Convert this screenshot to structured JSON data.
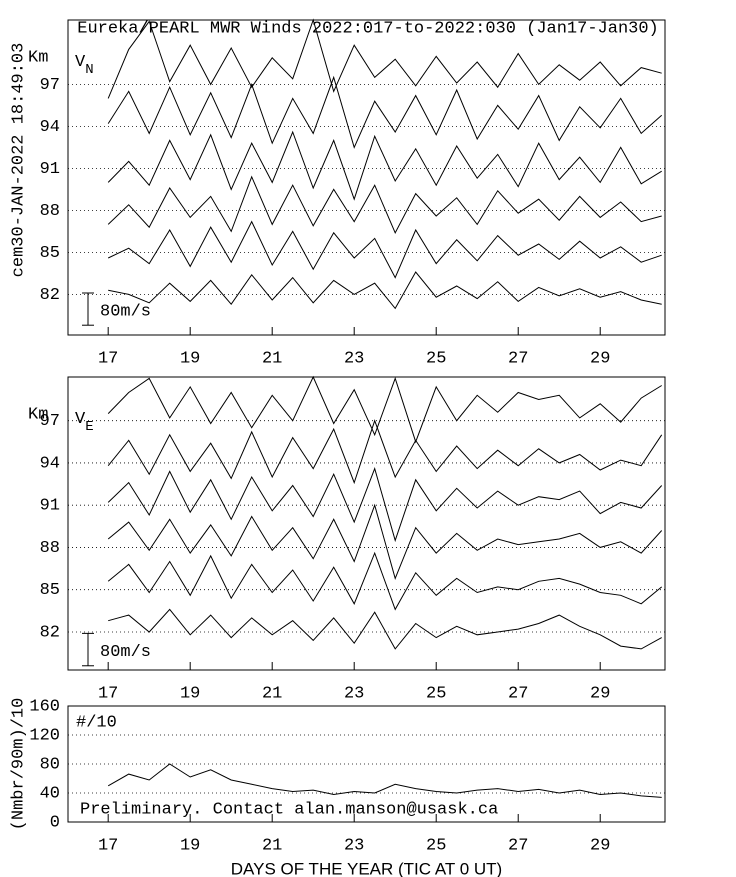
{
  "header": {
    "title": "Eureka/PEARL MWR Winds 2022:017-to-2022:030 (Jan17-Jan30)",
    "timestamp": "cem30-JAN-2022 18:49:03"
  },
  "chart_data": [
    {
      "type": "line",
      "unit_label": "Km",
      "panel_label": "V",
      "panel_sub": "N",
      "scale_label": "80m/s",
      "scale_bar": [
        79.8,
        82.1
      ],
      "xlim": [
        16.02,
        30.58
      ],
      "xticks": [
        17,
        19,
        21,
        23,
        25,
        27,
        29
      ],
      "ylim": [
        79.1,
        101.6
      ],
      "yticks": [
        82,
        85,
        88,
        91,
        94,
        97
      ],
      "grid": true,
      "x": [
        17.0,
        17.5,
        18.0,
        18.5,
        19.0,
        19.5,
        20.0,
        20.5,
        21.0,
        21.5,
        22.0,
        22.5,
        23.0,
        23.5,
        24.0,
        24.5,
        25.0,
        25.5,
        26.0,
        26.5,
        27.0,
        27.5,
        28.0,
        28.5,
        29.0,
        29.5,
        30.0,
        30.5
      ],
      "series": [
        {
          "color": "#000000",
          "values": [
            96.0,
            99.5,
            101.5,
            97.2,
            99.8,
            97.0,
            99.6,
            96.8,
            98.9,
            97.4,
            101.6,
            96.5,
            99.8,
            97.5,
            98.8,
            96.9,
            99.0,
            97.1,
            98.6,
            96.8,
            99.2,
            97.0,
            98.4,
            97.3,
            98.6,
            96.9,
            98.2,
            97.8
          ]
        },
        {
          "color": "#000000",
          "values": [
            94.2,
            96.5,
            93.5,
            96.8,
            93.4,
            96.4,
            93.2,
            97.0,
            92.8,
            96.0,
            93.5,
            97.5,
            92.5,
            95.8,
            93.6,
            96.2,
            93.4,
            96.6,
            93.1,
            95.5,
            93.8,
            96.2,
            93.0,
            95.4,
            93.9,
            96.0,
            93.5,
            94.8
          ]
        },
        {
          "color": "#000000",
          "values": [
            90.0,
            91.5,
            89.8,
            93.0,
            90.2,
            93.4,
            89.5,
            92.8,
            90.0,
            93.6,
            89.6,
            93.0,
            88.8,
            93.3,
            90.1,
            92.4,
            89.8,
            92.6,
            90.3,
            92.0,
            89.7,
            92.8,
            90.2,
            91.8,
            90.0,
            92.5,
            89.9,
            90.8
          ]
        },
        {
          "color": "#000000",
          "values": [
            87.0,
            88.4,
            86.8,
            89.6,
            87.5,
            89.0,
            86.5,
            90.4,
            87.0,
            89.8,
            86.9,
            89.5,
            87.2,
            89.8,
            86.4,
            89.2,
            87.6,
            88.9,
            87.0,
            89.4,
            87.8,
            88.8,
            87.3,
            89.0,
            87.5,
            88.6,
            87.2,
            87.6
          ]
        },
        {
          "color": "#000000",
          "values": [
            84.6,
            85.3,
            84.2,
            86.6,
            84.0,
            86.8,
            84.3,
            87.2,
            84.1,
            86.5,
            83.8,
            86.4,
            84.6,
            86.0,
            83.2,
            86.6,
            84.2,
            85.9,
            84.4,
            86.2,
            84.8,
            85.6,
            84.5,
            85.8,
            84.6,
            85.4,
            84.3,
            84.8
          ]
        },
        {
          "color": "#000000",
          "values": [
            82.3,
            82.0,
            81.4,
            82.8,
            81.5,
            83.0,
            81.3,
            83.4,
            81.6,
            83.2,
            81.4,
            83.0,
            82.0,
            82.8,
            81.0,
            83.6,
            81.8,
            82.6,
            81.7,
            82.9,
            81.5,
            82.5,
            81.9,
            82.4,
            81.8,
            82.2,
            81.6,
            81.3
          ]
        }
      ]
    },
    {
      "type": "line",
      "unit_label": "Km",
      "panel_label": "V",
      "panel_sub": "E",
      "scale_label": "80m/s",
      "scale_bar": [
        79.6,
        81.9
      ],
      "xlim": [
        16.02,
        30.58
      ],
      "xticks": [
        17,
        19,
        21,
        23,
        25,
        27,
        29
      ],
      "ylim": [
        79.3,
        100.1
      ],
      "yticks": [
        82,
        85,
        88,
        91,
        94,
        97
      ],
      "grid": true,
      "x": [
        17.0,
        17.5,
        18.0,
        18.5,
        19.0,
        19.5,
        20.0,
        20.5,
        21.0,
        21.5,
        22.0,
        22.5,
        23.0,
        23.5,
        24.0,
        24.5,
        25.0,
        25.5,
        26.0,
        26.5,
        27.0,
        27.5,
        28.0,
        28.5,
        29.0,
        29.5,
        30.0,
        30.5
      ],
      "series": [
        {
          "color": "#000000",
          "values": [
            97.5,
            99.0,
            100.0,
            97.2,
            99.4,
            96.8,
            99.0,
            96.5,
            98.8,
            97.0,
            100.1,
            96.8,
            99.2,
            96.0,
            100.0,
            95.5,
            99.4,
            97.0,
            98.8,
            97.6,
            99.0,
            98.5,
            98.8,
            97.2,
            98.2,
            96.9,
            98.6,
            99.5
          ]
        },
        {
          "color": "#000000",
          "values": [
            93.8,
            95.6,
            93.2,
            96.0,
            93.4,
            95.4,
            92.9,
            96.2,
            93.0,
            95.8,
            93.6,
            96.4,
            92.6,
            97.0,
            93.0,
            95.6,
            93.4,
            95.2,
            93.6,
            94.9,
            93.8,
            95.0,
            94.0,
            94.6,
            93.5,
            94.2,
            93.8,
            96.0
          ]
        },
        {
          "color": "#000000",
          "values": [
            91.2,
            92.6,
            90.3,
            93.4,
            90.5,
            92.8,
            90.0,
            93.0,
            90.6,
            92.4,
            90.2,
            93.2,
            89.8,
            93.6,
            88.5,
            92.8,
            90.6,
            92.2,
            90.8,
            92.0,
            91.0,
            91.6,
            91.4,
            92.0,
            90.4,
            91.2,
            90.8,
            92.4
          ]
        },
        {
          "color": "#000000",
          "values": [
            88.6,
            89.8,
            87.8,
            90.0,
            87.6,
            89.6,
            87.4,
            90.2,
            87.8,
            89.4,
            87.2,
            90.0,
            87.0,
            91.0,
            85.8,
            89.4,
            87.6,
            89.0,
            87.8,
            88.6,
            88.2,
            88.4,
            88.6,
            89.0,
            88.0,
            88.4,
            87.6,
            89.2
          ]
        },
        {
          "color": "#000000",
          "values": [
            85.6,
            86.8,
            84.8,
            87.0,
            84.6,
            87.4,
            84.4,
            86.8,
            84.8,
            86.4,
            84.2,
            86.6,
            84.0,
            87.6,
            83.6,
            86.2,
            84.6,
            85.8,
            84.8,
            85.2,
            85.0,
            85.6,
            85.8,
            85.4,
            84.8,
            84.6,
            84.0,
            85.2
          ]
        },
        {
          "color": "#000000",
          "values": [
            82.8,
            83.2,
            82.0,
            83.6,
            81.8,
            83.2,
            81.6,
            83.0,
            81.8,
            82.8,
            81.4,
            83.0,
            81.2,
            83.4,
            80.8,
            82.6,
            81.6,
            82.4,
            81.8,
            82.0,
            82.2,
            82.6,
            83.2,
            82.4,
            81.8,
            81.0,
            80.8,
            81.6
          ]
        }
      ]
    },
    {
      "type": "line",
      "annotation": "#/10",
      "note": "Preliminary. Contact alan.manson@usask.ca",
      "ylabel": "(Nmbr/90m)/10",
      "xlabel": "DAYS OF THE YEAR (TIC AT 0 UT)",
      "xlim": [
        16.02,
        30.58
      ],
      "xticks": [
        17,
        19,
        21,
        23,
        25,
        27,
        29
      ],
      "ylim": [
        0,
        160
      ],
      "yticks": [
        0,
        40,
        80,
        120,
        160
      ],
      "grid": true,
      "x": [
        17.0,
        17.5,
        18.0,
        18.5,
        19.0,
        19.5,
        20.0,
        20.5,
        21.0,
        21.5,
        22.0,
        22.5,
        23.0,
        23.5,
        24.0,
        24.5,
        25.0,
        25.5,
        26.0,
        26.5,
        27.0,
        27.5,
        28.0,
        28.5,
        29.0,
        29.5,
        30.0,
        30.5
      ],
      "series": [
        {
          "color": "#000000",
          "values": [
            50,
            66,
            58,
            80,
            62,
            72,
            58,
            52,
            46,
            42,
            44,
            38,
            42,
            40,
            52,
            46,
            42,
            40,
            44,
            46,
            42,
            45,
            40,
            44,
            38,
            40,
            36,
            34
          ]
        }
      ]
    }
  ]
}
